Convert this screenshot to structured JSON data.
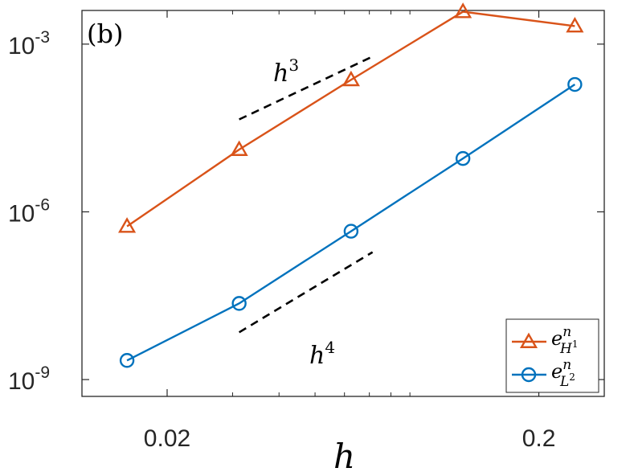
{
  "chart_data": {
    "type": "line",
    "panel_label": "(b)",
    "xlabel": "h",
    "ylabel": "",
    "xscale": "log",
    "yscale": "log",
    "xlim": [
      0.0118,
      0.3
    ],
    "ylim": [
      5e-10,
      0.004
    ],
    "x_ticks": [
      0.02,
      0.2
    ],
    "x_tick_labels": [
      "0.02",
      "0.2"
    ],
    "y_ticks": [
      1e-09,
      1e-06,
      0.001
    ],
    "y_tick_labels": [
      {
        "base": "10",
        "exp": "-9"
      },
      {
        "base": "10",
        "exp": "-6"
      },
      {
        "base": "10",
        "exp": "-3"
      }
    ],
    "grid": false,
    "legend_position": "bottom-right",
    "x": [
      0.0156,
      0.03125,
      0.0625,
      0.125,
      0.25
    ],
    "series": [
      {
        "name": "e^n_{H^1}",
        "legend_main": "e",
        "legend_sup": "n",
        "legend_sub": "H",
        "legend_subsup": "1",
        "color": "#D95319",
        "marker": "triangle",
        "values": [
          5.5e-07,
          1.3e-05,
          0.00023,
          0.0038,
          0.0021
        ]
      },
      {
        "name": "e^n_{L^2}",
        "legend_main": "e",
        "legend_sup": "n",
        "legend_sub": "L",
        "legend_subsup": "2",
        "color": "#0072BD",
        "marker": "circle",
        "values": [
          2.2e-09,
          2.3e-08,
          4.5e-07,
          9e-06,
          0.00019
        ]
      }
    ],
    "reference_lines": [
      {
        "label_base": "h",
        "label_exp": "3",
        "x": [
          0.03125,
          0.0714
        ],
        "y": [
          4.5e-05,
          0.0006
        ]
      },
      {
        "label_base": "h",
        "label_exp": "4",
        "x": [
          0.03125,
          0.0714
        ],
        "y": [
          7e-09,
          1.9e-07
        ]
      }
    ]
  }
}
